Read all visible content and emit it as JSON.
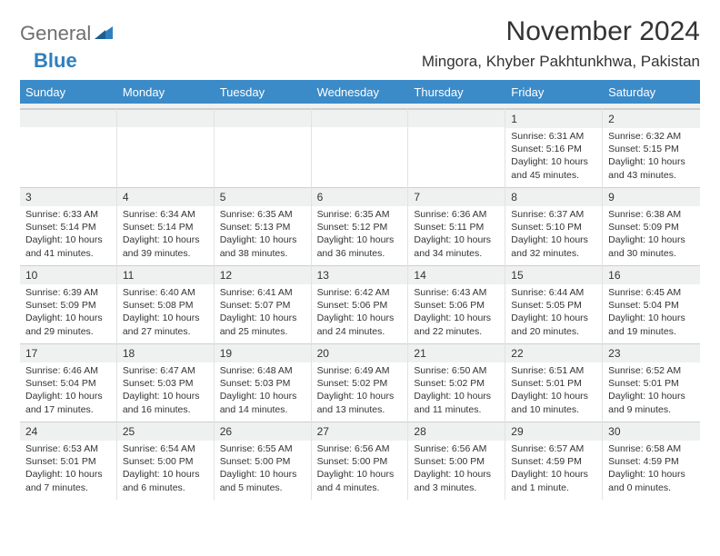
{
  "brand": {
    "word1": "General",
    "word2": "Blue"
  },
  "title": "November 2024",
  "location": "Mingora, Khyber Pakhtunkhwa, Pakistan",
  "colors": {
    "header_bar": "#3b8bc9",
    "daynum_bg": "#eff0f0",
    "text": "#333333",
    "logo_grey": "#6f6f6f",
    "logo_blue": "#2f7fbf"
  },
  "dow": [
    "Sunday",
    "Monday",
    "Tuesday",
    "Wednesday",
    "Thursday",
    "Friday",
    "Saturday"
  ],
  "weeks": [
    [
      null,
      null,
      null,
      null,
      null,
      {
        "n": "1",
        "sr": "Sunrise: 6:31 AM",
        "ss": "Sunset: 5:16 PM",
        "d1": "Daylight: 10 hours",
        "d2": "and 45 minutes."
      },
      {
        "n": "2",
        "sr": "Sunrise: 6:32 AM",
        "ss": "Sunset: 5:15 PM",
        "d1": "Daylight: 10 hours",
        "d2": "and 43 minutes."
      }
    ],
    [
      {
        "n": "3",
        "sr": "Sunrise: 6:33 AM",
        "ss": "Sunset: 5:14 PM",
        "d1": "Daylight: 10 hours",
        "d2": "and 41 minutes."
      },
      {
        "n": "4",
        "sr": "Sunrise: 6:34 AM",
        "ss": "Sunset: 5:14 PM",
        "d1": "Daylight: 10 hours",
        "d2": "and 39 minutes."
      },
      {
        "n": "5",
        "sr": "Sunrise: 6:35 AM",
        "ss": "Sunset: 5:13 PM",
        "d1": "Daylight: 10 hours",
        "d2": "and 38 minutes."
      },
      {
        "n": "6",
        "sr": "Sunrise: 6:35 AM",
        "ss": "Sunset: 5:12 PM",
        "d1": "Daylight: 10 hours",
        "d2": "and 36 minutes."
      },
      {
        "n": "7",
        "sr": "Sunrise: 6:36 AM",
        "ss": "Sunset: 5:11 PM",
        "d1": "Daylight: 10 hours",
        "d2": "and 34 minutes."
      },
      {
        "n": "8",
        "sr": "Sunrise: 6:37 AM",
        "ss": "Sunset: 5:10 PM",
        "d1": "Daylight: 10 hours",
        "d2": "and 32 minutes."
      },
      {
        "n": "9",
        "sr": "Sunrise: 6:38 AM",
        "ss": "Sunset: 5:09 PM",
        "d1": "Daylight: 10 hours",
        "d2": "and 30 minutes."
      }
    ],
    [
      {
        "n": "10",
        "sr": "Sunrise: 6:39 AM",
        "ss": "Sunset: 5:09 PM",
        "d1": "Daylight: 10 hours",
        "d2": "and 29 minutes."
      },
      {
        "n": "11",
        "sr": "Sunrise: 6:40 AM",
        "ss": "Sunset: 5:08 PM",
        "d1": "Daylight: 10 hours",
        "d2": "and 27 minutes."
      },
      {
        "n": "12",
        "sr": "Sunrise: 6:41 AM",
        "ss": "Sunset: 5:07 PM",
        "d1": "Daylight: 10 hours",
        "d2": "and 25 minutes."
      },
      {
        "n": "13",
        "sr": "Sunrise: 6:42 AM",
        "ss": "Sunset: 5:06 PM",
        "d1": "Daylight: 10 hours",
        "d2": "and 24 minutes."
      },
      {
        "n": "14",
        "sr": "Sunrise: 6:43 AM",
        "ss": "Sunset: 5:06 PM",
        "d1": "Daylight: 10 hours",
        "d2": "and 22 minutes."
      },
      {
        "n": "15",
        "sr": "Sunrise: 6:44 AM",
        "ss": "Sunset: 5:05 PM",
        "d1": "Daylight: 10 hours",
        "d2": "and 20 minutes."
      },
      {
        "n": "16",
        "sr": "Sunrise: 6:45 AM",
        "ss": "Sunset: 5:04 PM",
        "d1": "Daylight: 10 hours",
        "d2": "and 19 minutes."
      }
    ],
    [
      {
        "n": "17",
        "sr": "Sunrise: 6:46 AM",
        "ss": "Sunset: 5:04 PM",
        "d1": "Daylight: 10 hours",
        "d2": "and 17 minutes."
      },
      {
        "n": "18",
        "sr": "Sunrise: 6:47 AM",
        "ss": "Sunset: 5:03 PM",
        "d1": "Daylight: 10 hours",
        "d2": "and 16 minutes."
      },
      {
        "n": "19",
        "sr": "Sunrise: 6:48 AM",
        "ss": "Sunset: 5:03 PM",
        "d1": "Daylight: 10 hours",
        "d2": "and 14 minutes."
      },
      {
        "n": "20",
        "sr": "Sunrise: 6:49 AM",
        "ss": "Sunset: 5:02 PM",
        "d1": "Daylight: 10 hours",
        "d2": "and 13 minutes."
      },
      {
        "n": "21",
        "sr": "Sunrise: 6:50 AM",
        "ss": "Sunset: 5:02 PM",
        "d1": "Daylight: 10 hours",
        "d2": "and 11 minutes."
      },
      {
        "n": "22",
        "sr": "Sunrise: 6:51 AM",
        "ss": "Sunset: 5:01 PM",
        "d1": "Daylight: 10 hours",
        "d2": "and 10 minutes."
      },
      {
        "n": "23",
        "sr": "Sunrise: 6:52 AM",
        "ss": "Sunset: 5:01 PM",
        "d1": "Daylight: 10 hours",
        "d2": "and 9 minutes."
      }
    ],
    [
      {
        "n": "24",
        "sr": "Sunrise: 6:53 AM",
        "ss": "Sunset: 5:01 PM",
        "d1": "Daylight: 10 hours",
        "d2": "and 7 minutes."
      },
      {
        "n": "25",
        "sr": "Sunrise: 6:54 AM",
        "ss": "Sunset: 5:00 PM",
        "d1": "Daylight: 10 hours",
        "d2": "and 6 minutes."
      },
      {
        "n": "26",
        "sr": "Sunrise: 6:55 AM",
        "ss": "Sunset: 5:00 PM",
        "d1": "Daylight: 10 hours",
        "d2": "and 5 minutes."
      },
      {
        "n": "27",
        "sr": "Sunrise: 6:56 AM",
        "ss": "Sunset: 5:00 PM",
        "d1": "Daylight: 10 hours",
        "d2": "and 4 minutes."
      },
      {
        "n": "28",
        "sr": "Sunrise: 6:56 AM",
        "ss": "Sunset: 5:00 PM",
        "d1": "Daylight: 10 hours",
        "d2": "and 3 minutes."
      },
      {
        "n": "29",
        "sr": "Sunrise: 6:57 AM",
        "ss": "Sunset: 4:59 PM",
        "d1": "Daylight: 10 hours",
        "d2": "and 1 minute."
      },
      {
        "n": "30",
        "sr": "Sunrise: 6:58 AM",
        "ss": "Sunset: 4:59 PM",
        "d1": "Daylight: 10 hours",
        "d2": "and 0 minutes."
      }
    ]
  ]
}
